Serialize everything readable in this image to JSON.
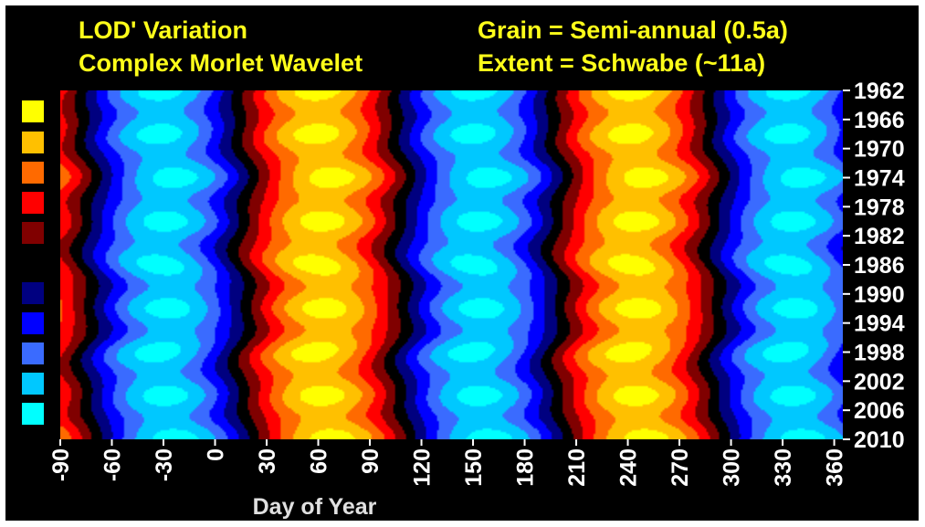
{
  "title_left": [
    "LOD' Variation",
    "Complex Morlet Wavelet"
  ],
  "title_right": [
    "Grain = Semi-annual (0.5a)",
    "Extent = Schwabe (~11a)"
  ],
  "chart_data": {
    "type": "heatmap",
    "xlabel": "Day of Year",
    "ylabel": "",
    "xlim": [
      -90,
      365
    ],
    "ylim": [
      1962,
      2010
    ],
    "x_ticks": [
      "-90",
      "-60",
      "-30",
      "0",
      "30",
      "60",
      "90",
      "120",
      "150",
      "180",
      "210",
      "240",
      "270",
      "300",
      "330",
      "360"
    ],
    "y_ticks": [
      "1962",
      "1966",
      "1970",
      "1974",
      "1978",
      "1982",
      "1986",
      "1990",
      "1994",
      "1998",
      "2002",
      "2006",
      "2010"
    ],
    "color_levels": [
      "#ffff00",
      "#ffc000",
      "#ff6a00",
      "#ff0000",
      "#800000",
      "#000000",
      "#000080",
      "#0000ff",
      "#3a6bff",
      "#00c8ff",
      "#00ffff"
    ],
    "legend_colors": [
      "#ffff00",
      "#ffc000",
      "#ff6a00",
      "#ff0000",
      "#800000",
      "#000080",
      "#0000ff",
      "#3a6bff",
      "#00c8ff",
      "#00ffff"
    ],
    "pattern": "semi-annual oscillation: warm bands peaking near day 62 and day 245, cool bands near day -30 and day 150; amplitude strongest near 1962, 1974, 1998 and 2010",
    "warm_peaks_day": [
      62,
      245
    ],
    "cool_peaks_day": [
      -28,
      153,
      336
    ],
    "bands": [
      {
        "level": "#ffff00",
        "x": [
          44,
          82
        ],
        "y": [
          1962,
          2010
        ]
      },
      {
        "level": "#ffff00",
        "x": [
          228,
          262
        ],
        "y": [
          1962,
          2010
        ]
      }
    ]
  }
}
